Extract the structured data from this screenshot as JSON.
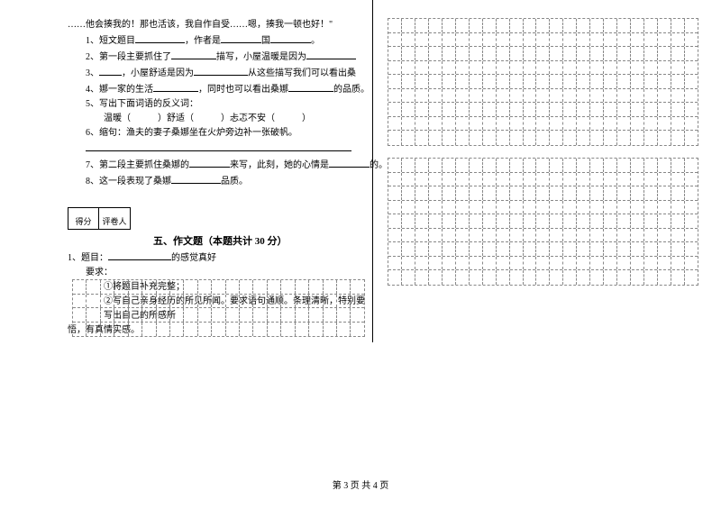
{
  "reading": {
    "intro": "……他会揍我的！那也活该，我自作自受……嗯，揍我一顿也好！\"",
    "q1_prefix": "1、短文题目",
    "q1_mid": "，作者是",
    "q1_mid2": "国",
    "q1_end": "。",
    "q2_prefix": "2、第一段主要抓住了",
    "q2_mid": "描写，小屋温暖是因为",
    "q2_end": "",
    "q3_prefix": "3、",
    "q3_mid": "，小屋舒适是因为",
    "q3_mid2": "从这些描写我们可以看出桑",
    "q4_prefix": "4、娜一家的生活",
    "q4_mid": "，同时也可以看出桑娜",
    "q4_end": "的品质。",
    "q5": "5、写出下面词语的反义词：",
    "q5_words": "温暖（　　　）舒适（　　　）忐忑不安（　　　）",
    "q6": "6、缩句：渔夫的妻子桑娜坐在火炉旁边补一张破帆。",
    "q7_prefix": "7、第二段主要抓住桑娜的",
    "q7_mid": "来写，此刻，她的心情是",
    "q7_end": "的。",
    "q8_prefix": "8、这一段表现了桑娜",
    "q8_end": "品质。"
  },
  "scoreLabels": {
    "score": "得分",
    "reviewer": "评卷人"
  },
  "section5": {
    "title": "五、作文题（本题共计 30 分）",
    "q1_prefix": "1、题目：",
    "q1_suffix": "的感觉真好",
    "req_label": "要求：",
    "req1": "①将题目补充完整；",
    "req2": "②写自己亲身经历的所见所闻。要求语句通顺。条理清晰，特别要写出自己的所感所",
    "req3": "悟，有真情实感。"
  },
  "footer": "第 3 页 共 4 页",
  "grid": {
    "cols_narrow": 21,
    "cols_wide": 23,
    "rows_small": 4,
    "rows_large": 9
  }
}
